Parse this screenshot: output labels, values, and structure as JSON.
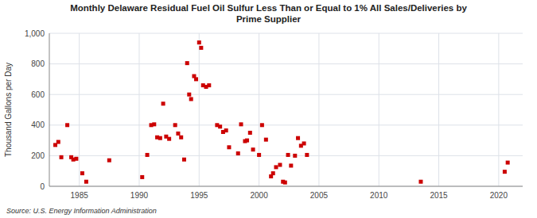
{
  "chart_data": {
    "type": "scatter",
    "title": "Monthly Delaware Residual Fuel Oil Sulfur Less Than or Equal to 1% All Sales/Deliveries by\nPrime Supplier",
    "ylabel": "Thousand Gallons per Day",
    "source": "Source: U.S. Energy Information Administration",
    "color": "#cc0000",
    "marker": "square",
    "grid": true,
    "xlim": [
      1982.5,
      2022
    ],
    "xticks": [
      1985,
      1990,
      1995,
      2000,
      2005,
      2010,
      2015,
      2020
    ],
    "ylim": [
      0,
      1000
    ],
    "yticks": [
      0,
      200,
      400,
      600,
      800,
      {
        "value": 1000,
        "label": "1,000"
      }
    ],
    "x": [
      1983.0,
      1983.25,
      1983.5,
      1984.0,
      1984.33,
      1984.5,
      1984.75,
      1985.25,
      1985.58,
      1987.5,
      1990.25,
      1990.67,
      1991.0,
      1991.25,
      1991.5,
      1991.75,
      1992.0,
      1992.25,
      1992.5,
      1993.0,
      1993.25,
      1993.5,
      1993.75,
      1994.0,
      1994.17,
      1994.33,
      1994.58,
      1994.75,
      1995.0,
      1995.17,
      1995.33,
      1995.58,
      1995.83,
      1996.5,
      1996.75,
      1997.0,
      1997.25,
      1997.5,
      1998.25,
      1998.5,
      1998.83,
      1999.0,
      1999.25,
      1999.5,
      2000.0,
      2000.25,
      2000.58,
      2001.0,
      2001.17,
      2001.42,
      2001.75,
      2002.0,
      2002.17,
      2002.42,
      2002.67,
      2003.0,
      2003.25,
      2003.5,
      2003.75,
      2004.0,
      2013.5,
      2020.5,
      2020.75
    ],
    "values": [
      270,
      290,
      190,
      400,
      190,
      175,
      180,
      85,
      30,
      170,
      60,
      205,
      400,
      405,
      320,
      315,
      540,
      325,
      310,
      400,
      345,
      320,
      175,
      805,
      600,
      570,
      720,
      700,
      940,
      905,
      660,
      650,
      660,
      400,
      390,
      355,
      365,
      255,
      215,
      405,
      295,
      300,
      350,
      240,
      205,
      400,
      305,
      65,
      85,
      125,
      140,
      30,
      25,
      205,
      135,
      200,
      315,
      265,
      280,
      205,
      30,
      95,
      155
    ]
  }
}
